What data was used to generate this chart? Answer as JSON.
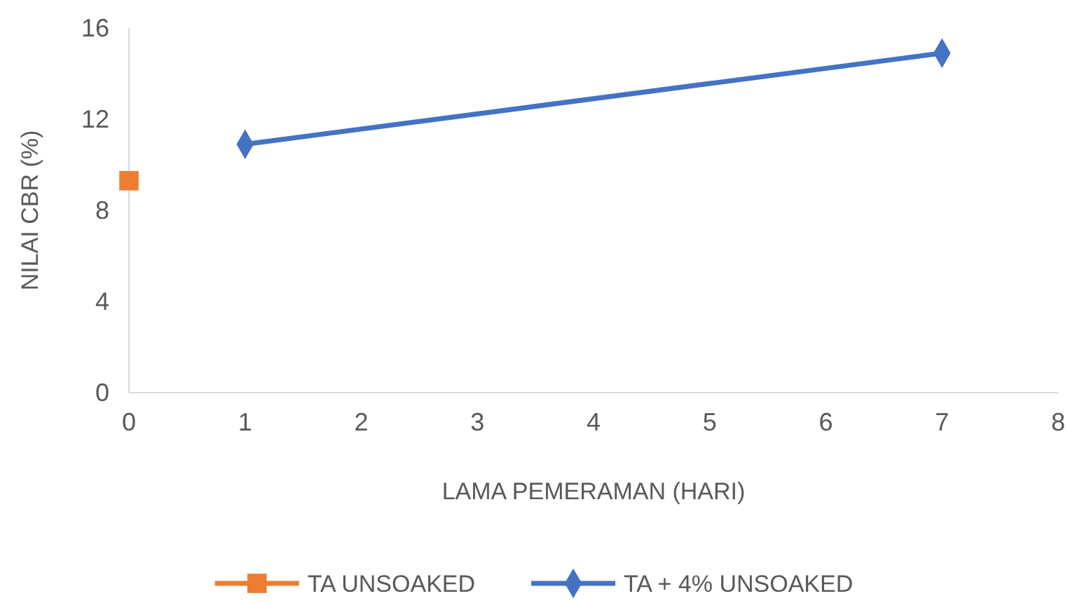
{
  "chart_data": {
    "type": "line",
    "xlabel": "LAMA PEMERAMAN (HARI)",
    "ylabel": "NILAI CBR (%)",
    "xlim": [
      0,
      8
    ],
    "xticks": [
      0,
      1,
      2,
      3,
      4,
      5,
      6,
      7,
      8
    ],
    "ylim": [
      0,
      16
    ],
    "yticks": [
      0,
      4,
      8,
      12,
      16
    ],
    "grid": false,
    "legend": "bottom",
    "series": [
      {
        "name": "TA UNSOAKED",
        "type": "scatter",
        "marker": "square",
        "color": "#ed7d31",
        "x": [
          0
        ],
        "values": [
          9.3
        ]
      },
      {
        "name": "TA + 4% UNSOAKED",
        "marker": "diamond",
        "color": "#4472c4",
        "x": [
          1,
          7
        ],
        "values": [
          10.9,
          14.9
        ]
      }
    ]
  }
}
